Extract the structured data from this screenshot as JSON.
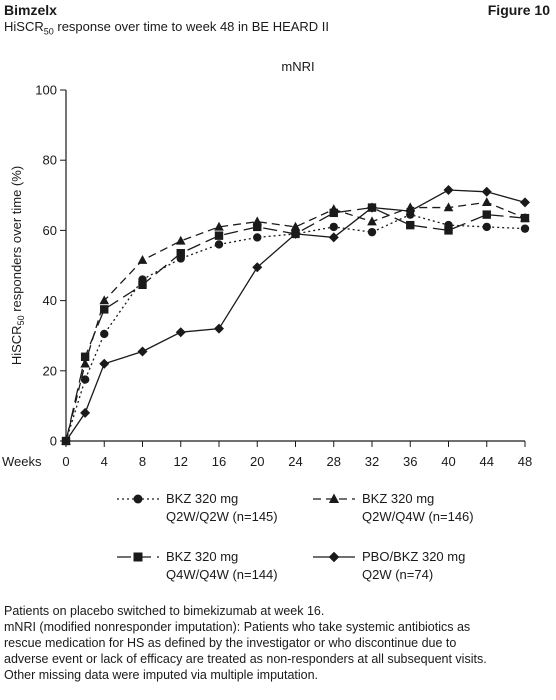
{
  "header": {
    "brand": "Bimzelx",
    "subtitle_pre": "HiSCR",
    "subtitle_sub": "50",
    "subtitle_post": " response over time to week 48 in BE HEARD II",
    "figure_label": "Figure 10"
  },
  "chart_data": {
    "type": "line",
    "title": "mNRI",
    "xlabel": "Weeks",
    "ylabel_pre": "HiSCR",
    "ylabel_sub": "50",
    "ylabel_post": " responders over time (%)",
    "x": [
      0,
      2,
      4,
      8,
      12,
      16,
      20,
      24,
      28,
      32,
      36,
      40,
      44,
      48
    ],
    "xticks": [
      0,
      4,
      8,
      12,
      16,
      20,
      24,
      28,
      32,
      36,
      40,
      44,
      48
    ],
    "yticks": [
      0,
      20,
      40,
      60,
      80,
      100
    ],
    "xlim": [
      0,
      48
    ],
    "ylim": [
      0,
      100
    ],
    "grid": false,
    "legend_position": "bottom",
    "series": [
      {
        "name_line1": "BKZ 320 mg",
        "name_line2": "Q2W/Q2W (n=145)",
        "marker": "circle",
        "dash": "dotted",
        "color": "#1a1a1a",
        "values": [
          0,
          17.5,
          30.5,
          46,
          52,
          56,
          58,
          59,
          61,
          59.5,
          64.5,
          61.5,
          61,
          60.5
        ]
      },
      {
        "name_line1": "BKZ 320 mg",
        "name_line2": "Q2W/Q4W (n=146)",
        "marker": "triangle",
        "dash": "dashed",
        "color": "#1a1a1a",
        "values": [
          0,
          22,
          40,
          51.5,
          57,
          61,
          62.5,
          61,
          66,
          62.5,
          66.5,
          66.5,
          68,
          63.5
        ]
      },
      {
        "name_line1": "BKZ 320 mg",
        "name_line2": "Q4W/Q4W (n=144)",
        "marker": "square",
        "dash": "longdash",
        "color": "#1a1a1a",
        "values": [
          0,
          24,
          37.5,
          44.5,
          53.5,
          58.5,
          61,
          59,
          65,
          66.5,
          61.5,
          60,
          64.5,
          63.5
        ]
      },
      {
        "name_line1": "PBO/BKZ 320 mg",
        "name_line2": "Q2W (n=74)",
        "marker": "diamond",
        "dash": "solid",
        "color": "#1a1a1a",
        "values": [
          0,
          8,
          22,
          25.5,
          31,
          32,
          49.5,
          59,
          58,
          66.5,
          65.5,
          71.5,
          71,
          68
        ]
      }
    ]
  },
  "footnotes": [
    "Patients on placebo switched to bimekizumab at week 16.",
    "mNRI (modified nonresponder imputation): Patients who take systemic antibiotics as",
    "rescue medication for HS as defined by the investigator or who discontinue due to",
    "adverse event or lack of efficacy are treated as non-responders at all subsequent visits.",
    "Other missing data were imputed via multiple imputation."
  ]
}
